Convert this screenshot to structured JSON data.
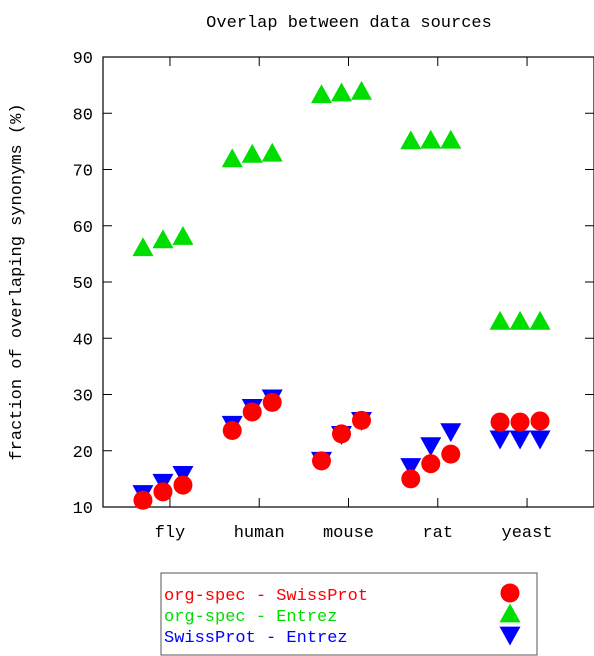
{
  "chart_data": {
    "type": "scatter",
    "title": "Overlap between data sources",
    "xlabel": "",
    "ylabel": "fraction of overlaping synonyms (%)",
    "categories": [
      "fly",
      "human",
      "mouse",
      "rat",
      "yeast"
    ],
    "ylim": [
      10,
      90
    ],
    "yticks": [
      "10",
      "20",
      "30",
      "40",
      "50",
      "60",
      "70",
      "80",
      "90"
    ],
    "grid": false,
    "legend_position": "bottom",
    "series": [
      {
        "name": "org-spec - SwissProt",
        "color": "#ff0000",
        "marker": "circle",
        "values": [
          [
            11.2,
            12.7,
            13.9
          ],
          [
            23.6,
            26.9,
            28.6
          ],
          [
            18.2,
            23.0,
            25.4
          ],
          [
            15.0,
            17.7,
            19.4
          ],
          [
            25.1,
            25.1,
            25.3
          ]
        ]
      },
      {
        "name": "org-spec - Entrez",
        "color": "#00dd00",
        "marker": "triangle-up",
        "values": [
          [
            56.1,
            57.5,
            58.1
          ],
          [
            71.9,
            72.7,
            72.9
          ],
          [
            83.3,
            83.6,
            83.9
          ],
          [
            75.1,
            75.2,
            75.2
          ],
          [
            43.0,
            43.0,
            43.0
          ]
        ]
      },
      {
        "name": "SwissProt - Entrez",
        "color": "#0000ff",
        "marker": "triangle-down",
        "values": [
          [
            12.4,
            14.4,
            15.8
          ],
          [
            24.7,
            27.7,
            29.4
          ],
          [
            18.3,
            22.9,
            25.4
          ],
          [
            17.2,
            20.9,
            23.4
          ],
          [
            22.1,
            22.1,
            22.1
          ]
        ]
      }
    ]
  }
}
